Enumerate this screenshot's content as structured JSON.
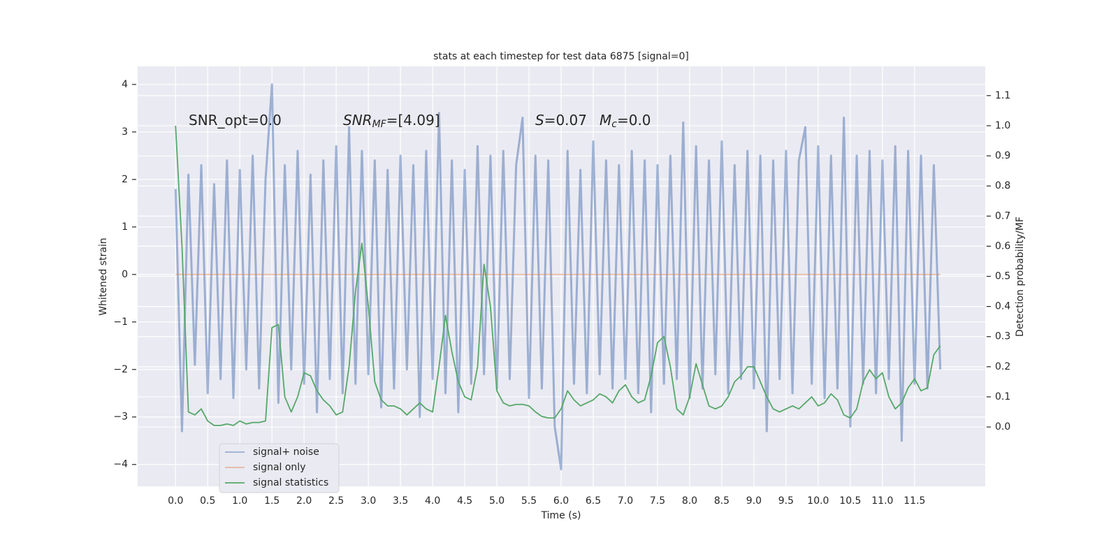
{
  "chart_data": {
    "type": "line",
    "title": "stats at each timestep for test data 6875 [signal=0]",
    "x_label": "Time (s)",
    "y_label": "Whitened strain",
    "y2_label": "Detection probability/MF",
    "annotations": [
      [
        {
          "text": "SNR_opt=0.0"
        }
      ],
      [
        {
          "text": "SNR",
          "italic": true
        },
        {
          "text": "MF",
          "italic": true,
          "sub": true
        },
        {
          "text": "=[4.09]"
        }
      ],
      [
        {
          "text": "S",
          "italic": true
        },
        {
          "text": "=0.07"
        }
      ],
      [
        {
          "text": "M",
          "italic": true
        },
        {
          "text": "c",
          "italic": true,
          "sub": true
        },
        {
          "text": "=0.0"
        }
      ]
    ],
    "x": [
      0,
      0.1,
      0.2,
      0.3,
      0.4,
      0.5,
      0.6,
      0.7,
      0.8,
      0.9,
      1,
      1.1,
      1.2,
      1.3,
      1.4,
      1.5,
      1.6,
      1.7,
      1.8,
      1.9,
      2,
      2.1,
      2.2,
      2.3,
      2.4,
      2.5,
      2.6,
      2.7,
      2.8,
      2.9,
      3,
      3.1,
      3.2,
      3.3,
      3.4,
      3.5,
      3.6,
      3.7,
      3.8,
      3.9,
      4,
      4.1,
      4.2,
      4.3,
      4.4,
      4.5,
      4.6,
      4.7,
      4.8,
      4.9,
      5,
      5.1,
      5.2,
      5.3,
      5.4,
      5.5,
      5.6,
      5.7,
      5.8,
      5.9,
      6,
      6.1,
      6.2,
      6.3,
      6.4,
      6.5,
      6.6,
      6.7,
      6.8,
      6.9,
      7,
      7.1,
      7.2,
      7.3,
      7.4,
      7.5,
      7.6,
      7.7,
      7.8,
      7.9,
      8,
      8.1,
      8.2,
      8.3,
      8.4,
      8.5,
      8.6,
      8.7,
      8.8,
      8.9,
      9,
      9.1,
      9.2,
      9.3,
      9.4,
      9.5,
      9.6,
      9.7,
      9.8,
      9.9,
      10,
      10.1,
      10.2,
      10.3,
      10.4,
      10.5,
      10.6,
      10.7,
      10.8,
      10.9,
      11,
      11.1,
      11.2,
      11.3,
      11.4,
      11.5,
      11.6,
      11.7,
      11.8,
      11.9
    ],
    "series": [
      {
        "name": "signal+ noise",
        "color": "#4c72b0",
        "alpha": 0.5,
        "values": [
          1.8,
          -3.3,
          2.1,
          -1.9,
          2.3,
          -2.5,
          1.9,
          -2.2,
          2.4,
          -2.6,
          2.2,
          -2.0,
          2.5,
          -2.4,
          2.0,
          4.0,
          -2.7,
          2.3,
          -2.0,
          2.6,
          -2.3,
          2.1,
          -2.9,
          2.4,
          -2.2,
          2.7,
          -2.5,
          3.1,
          -2.3,
          2.6,
          -2.1,
          2.4,
          -2.8,
          2.2,
          -2.4,
          2.5,
          -2.0,
          2.3,
          -3.0,
          2.6,
          -2.2,
          3.4,
          -2.5,
          2.4,
          -2.9,
          2.2,
          -2.3,
          2.7,
          -2.1,
          2.5,
          -2.4,
          2.6,
          -2.2,
          2.3,
          3.3,
          -2.6,
          2.5,
          -2.4,
          2.4,
          -3.2,
          -4.1,
          2.6,
          -2.3,
          2.2,
          -2.5,
          2.8,
          -2.1,
          2.4,
          -2.4,
          2.3,
          -2.2,
          2.6,
          -2.5,
          2.4,
          -2.9,
          2.3,
          -2.3,
          2.5,
          -2.2,
          3.2,
          -2.6,
          2.7,
          -2.4,
          2.4,
          -2.1,
          2.8,
          -2.5,
          2.3,
          -2.2,
          2.6,
          -2.4,
          2.5,
          -3.3,
          2.4,
          -2.2,
          2.6,
          -2.5,
          2.4,
          3.1,
          -2.3,
          2.7,
          -2.6,
          2.5,
          -2.4,
          3.3,
          -3.2,
          2.5,
          -2.3,
          2.6,
          -2.5,
          2.4,
          -2.2,
          2.7,
          -3.5,
          2.6,
          -2.3,
          2.5,
          -2.4,
          2.3,
          -2.0
        ]
      },
      {
        "name": "signal only",
        "color": "#dd8452",
        "alpha": 0.5,
        "values": [
          0,
          0,
          0,
          0,
          0,
          0,
          0,
          0,
          0,
          0,
          0,
          0,
          0,
          0,
          0,
          0,
          0,
          0,
          0,
          0,
          0,
          0,
          0,
          0,
          0,
          0,
          0,
          0,
          0,
          0,
          0,
          0,
          0,
          0,
          0,
          0,
          0,
          0,
          0,
          0,
          0,
          0,
          0,
          0,
          0,
          0,
          0,
          0,
          0,
          0,
          0,
          0,
          0,
          0,
          0,
          0,
          0,
          0,
          0,
          0,
          0,
          0,
          0,
          0,
          0,
          0,
          0,
          0,
          0,
          0,
          0,
          0,
          0,
          0,
          0,
          0,
          0,
          0,
          0,
          0,
          0,
          0,
          0,
          0,
          0,
          0,
          0,
          0,
          0,
          0,
          0,
          0,
          0,
          0,
          0,
          0,
          0,
          0,
          0,
          0,
          0,
          0,
          0,
          0,
          0,
          0,
          0,
          0,
          0,
          0,
          0,
          0,
          0,
          0,
          0,
          0,
          0,
          0,
          0,
          0
        ]
      },
      {
        "name": "signal statistics",
        "color": "#55a868",
        "alpha": 1,
        "axis": "y2",
        "values": [
          1.0,
          0.6,
          0.05,
          0.04,
          0.06,
          0.02,
          0.005,
          0.005,
          0.01,
          0.005,
          0.02,
          0.01,
          0.015,
          0.015,
          0.02,
          0.33,
          0.34,
          0.1,
          0.05,
          0.1,
          0.18,
          0.17,
          0.12,
          0.09,
          0.07,
          0.04,
          0.05,
          0.2,
          0.45,
          0.61,
          0.4,
          0.15,
          0.09,
          0.07,
          0.07,
          0.06,
          0.04,
          0.06,
          0.08,
          0.06,
          0.05,
          0.2,
          0.37,
          0.25,
          0.15,
          0.1,
          0.09,
          0.2,
          0.54,
          0.4,
          0.12,
          0.08,
          0.07,
          0.075,
          0.075,
          0.07,
          0.05,
          0.035,
          0.03,
          0.03,
          0.06,
          0.12,
          0.09,
          0.07,
          0.08,
          0.09,
          0.11,
          0.1,
          0.08,
          0.12,
          0.14,
          0.1,
          0.08,
          0.09,
          0.17,
          0.28,
          0.3,
          0.2,
          0.06,
          0.04,
          0.1,
          0.21,
          0.14,
          0.07,
          0.06,
          0.07,
          0.1,
          0.15,
          0.17,
          0.2,
          0.2,
          0.15,
          0.1,
          0.06,
          0.05,
          0.06,
          0.07,
          0.06,
          0.08,
          0.1,
          0.07,
          0.08,
          0.11,
          0.09,
          0.04,
          0.03,
          0.06,
          0.15,
          0.19,
          0.16,
          0.18,
          0.1,
          0.06,
          0.08,
          0.13,
          0.16,
          0.12,
          0.13,
          0.24,
          0.27
        ]
      }
    ],
    "xlim": [
      -0.59,
      12.6
    ],
    "xticks": [
      {
        "value": 0,
        "label": "0.0"
      },
      {
        "value": 0.5,
        "label": "0.5"
      },
      {
        "value": 1,
        "label": "1.0"
      },
      {
        "value": 1.5,
        "label": "1.5"
      },
      {
        "value": 2,
        "label": "2.0"
      },
      {
        "value": 2.5,
        "label": "2.5"
      },
      {
        "value": 3,
        "label": "3.0"
      },
      {
        "value": 3.5,
        "label": "3.5"
      },
      {
        "value": 4,
        "label": "4.0"
      },
      {
        "value": 4.5,
        "label": "4.5"
      },
      {
        "value": 5,
        "label": "5.0"
      },
      {
        "value": 5.5,
        "label": "5.5"
      },
      {
        "value": 6,
        "label": "6.0"
      },
      {
        "value": 6.5,
        "label": "6.5"
      },
      {
        "value": 7,
        "label": "7.0"
      },
      {
        "value": 7.5,
        "label": "7.5"
      },
      {
        "value": 8,
        "label": "8.0"
      },
      {
        "value": 8.5,
        "label": "8.5"
      },
      {
        "value": 9,
        "label": "9.0"
      },
      {
        "value": 9.5,
        "label": "9.5"
      },
      {
        "value": 10,
        "label": "10.0"
      },
      {
        "value": 10.5,
        "label": "10.5"
      },
      {
        "value": 11,
        "label": "11.0"
      },
      {
        "value": 11.5,
        "label": "11.5"
      }
    ],
    "ylim": [
      -4.46,
      4.38
    ],
    "yticks": [
      {
        "value": -4,
        "label": "−4"
      },
      {
        "value": -3,
        "label": "−3"
      },
      {
        "value": -2,
        "label": "−2"
      },
      {
        "value": -1,
        "label": "−1"
      },
      0,
      1,
      2,
      3,
      4
    ],
    "y2lim": [
      -0.197,
      1.197
    ],
    "y2ticks": [
      {
        "value": 0,
        "label": "0.0"
      },
      {
        "value": 0.1,
        "label": "0.1"
      },
      {
        "value": 0.2,
        "label": "0.2"
      },
      {
        "value": 0.3,
        "label": "0.3"
      },
      {
        "value": 0.4,
        "label": "0.4"
      },
      {
        "value": 0.5,
        "label": "0.5"
      },
      {
        "value": 0.6,
        "label": "0.6"
      },
      {
        "value": 0.7,
        "label": "0.7"
      },
      {
        "value": 0.8,
        "label": "0.8"
      },
      {
        "value": 0.9,
        "label": "0.9"
      },
      {
        "value": 1,
        "label": "1.0"
      },
      {
        "value": 1.1,
        "label": "1.1"
      }
    ],
    "grid": true,
    "legend": "lower left",
    "background": "#eaeaf2"
  }
}
